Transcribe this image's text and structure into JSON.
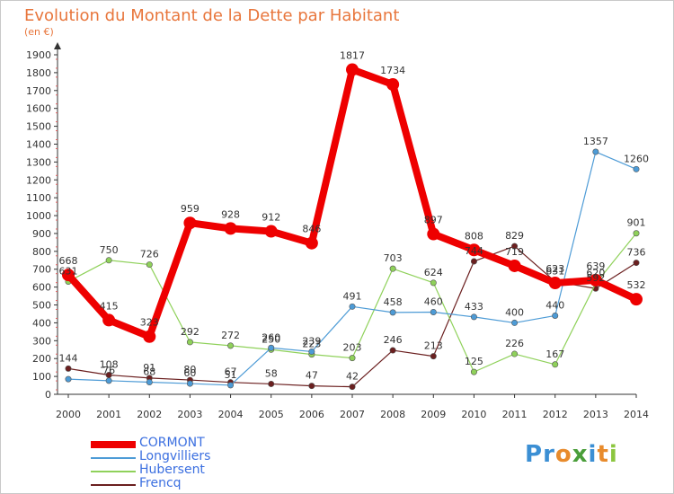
{
  "title": "Evolution du Montant de la Dette par Habitant",
  "subtitle": "(en €)",
  "logo": {
    "chars": [
      "P",
      "r",
      "o",
      "x",
      "i",
      "t",
      "i"
    ],
    "colors": [
      "#3b8fd4",
      "#3b8fd4",
      "#e88b2c",
      "#4a9e3a",
      "#3b8fd4",
      "#e88b2c",
      "#8cc63f"
    ]
  },
  "chart_data": {
    "type": "line",
    "x": [
      "2000",
      "2001",
      "2002",
      "2003",
      "2004",
      "2005",
      "2006",
      "2007",
      "2008",
      "2009",
      "2010",
      "2011",
      "2012",
      "2013",
      "2014"
    ],
    "ylim": [
      0,
      1900
    ],
    "yticks": [
      0,
      100,
      200,
      300,
      400,
      500,
      600,
      700,
      800,
      900,
      1000,
      1100,
      1200,
      1300,
      1400,
      1500,
      1600,
      1700,
      1800,
      1900
    ],
    "grid": false,
    "legend_position": "bottom-left",
    "series": [
      {
        "name": "CORMONT",
        "color": "#ee0000",
        "values": [
          668,
          415,
          323,
          959,
          928,
          912,
          846,
          1817,
          1734,
          897,
          808,
          719,
          623,
          639,
          532
        ]
      },
      {
        "name": "Longvilliers",
        "color": "#4d9bd6",
        "values": [
          85,
          76,
          68,
          60,
          51,
          260,
          239,
          491,
          458,
          460,
          433,
          400,
          440,
          1357,
          1260
        ]
      },
      {
        "name": "Hubersent",
        "color": "#8fd15a",
        "values": [
          631,
          750,
          726,
          292,
          272,
          250,
          223,
          203,
          703,
          624,
          125,
          226,
          167,
          620,
          901
        ]
      },
      {
        "name": "Frencq",
        "color": "#6b1f1f",
        "values": [
          144,
          108,
          91,
          80,
          67,
          58,
          47,
          42,
          246,
          213,
          744,
          829,
          631,
          592,
          736
        ]
      }
    ],
    "data_labels": [
      [
        "668",
        "415",
        "323",
        "959",
        "928",
        "912",
        "846",
        "1817",
        "1734",
        "897",
        "808",
        "719",
        "623",
        "639",
        "532"
      ],
      [
        "",
        "76",
        "68",
        "60",
        "51",
        "260",
        "239",
        "491",
        "458",
        "460",
        "433",
        "400",
        "440",
        "1357",
        "1260"
      ],
      [
        "631",
        "750",
        "726",
        "292",
        "272",
        "250",
        "223",
        "203",
        "703",
        "624",
        "125",
        "226",
        "167",
        "620",
        "901"
      ],
      [
        "144",
        "108",
        "91",
        "80",
        "67",
        "58",
        "47",
        "42",
        "246",
        "213",
        "744",
        "829",
        "631",
        "592",
        "736"
      ]
    ]
  }
}
